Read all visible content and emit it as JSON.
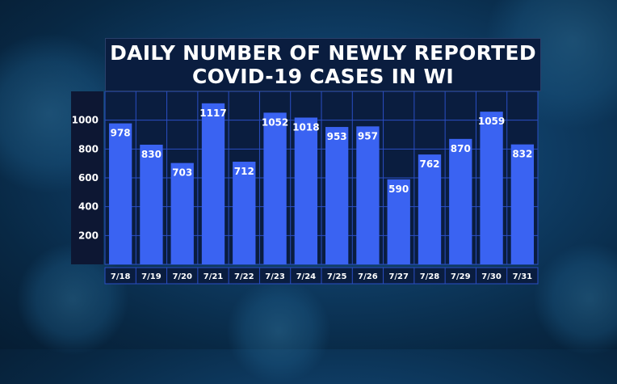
{
  "title_lines": [
    "DAILY NUMBER OF NEWLY REPORTED",
    "COVID-19 CASES IN WI"
  ],
  "colors": {
    "bar": "#3a63f2",
    "plot_bg": "#0a1d3f",
    "grid": "#2a4ec4",
    "text": "#ffffff"
  },
  "chart_data": {
    "type": "bar",
    "title": "DAILY NUMBER OF NEWLY REPORTED COVID-19 CASES IN WI",
    "categories": [
      "7/18",
      "7/19",
      "7/20",
      "7/21",
      "7/22",
      "7/23",
      "7/24",
      "7/25",
      "7/26",
      "7/27",
      "7/28",
      "7/29",
      "7/30",
      "7/31"
    ],
    "values": [
      978,
      830,
      703,
      1117,
      712,
      1052,
      1018,
      953,
      957,
      590,
      762,
      870,
      1059,
      832
    ],
    "yticks": [
      200,
      400,
      600,
      800,
      1000
    ],
    "ylim": [
      0,
      1200
    ],
    "grid": true,
    "data_labels": true,
    "xlabel": "",
    "ylabel": ""
  }
}
